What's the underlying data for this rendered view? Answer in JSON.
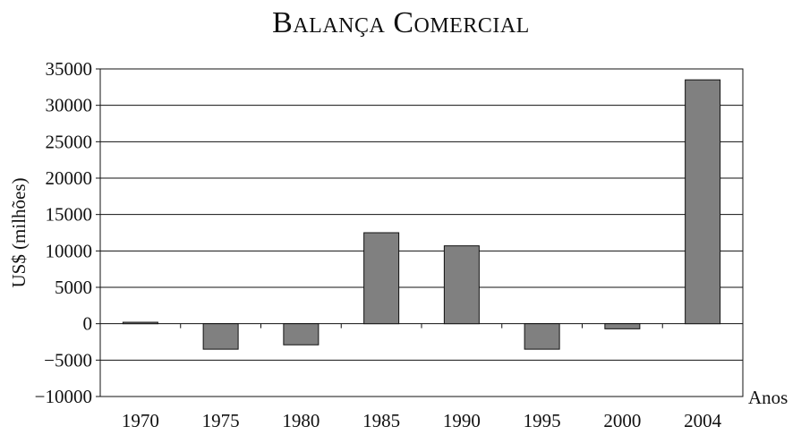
{
  "chart_data": {
    "type": "bar",
    "title": "Balança Comercial",
    "ylabel": "US$ (milhões)",
    "xlabel": "Anos",
    "categories": [
      "1970",
      "1975",
      "1980",
      "1985",
      "1990",
      "1995",
      "2000",
      "2004"
    ],
    "values": [
      200,
      -3500,
      -2900,
      12500,
      10700,
      -3500,
      -700,
      33500
    ],
    "ylim": [
      -10000,
      35000
    ],
    "yticks": [
      "35000",
      "30000",
      "25000",
      "20000",
      "15000",
      "10000",
      "5000",
      "0",
      "-5000",
      "-10000"
    ],
    "grid": true,
    "bar_color": "#808080",
    "legend": "none"
  }
}
